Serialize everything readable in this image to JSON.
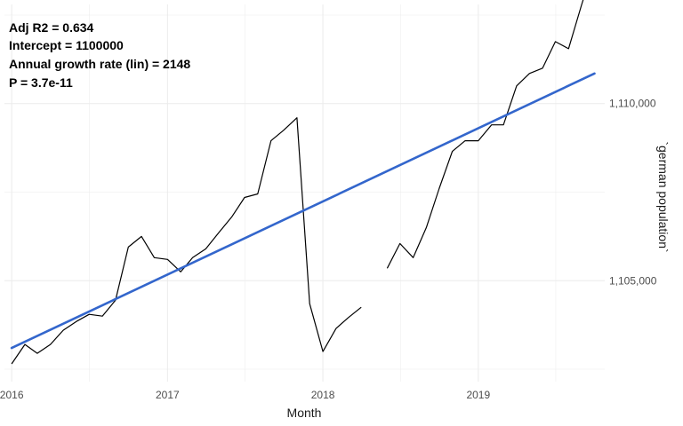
{
  "chart_data": {
    "type": "line",
    "xlabel": "Month",
    "ylabel": "`german population`",
    "xlim": [
      "2015-12-15",
      "2019-10-25"
    ],
    "ylim": [
      1102150,
      1112800
    ],
    "x_ticks": [
      {
        "date": "2016-01-01",
        "label": "2016"
      },
      {
        "date": "2017-01-01",
        "label": "2017"
      },
      {
        "date": "2018-01-01",
        "label": "2018"
      },
      {
        "date": "2019-01-01",
        "label": "2019"
      }
    ],
    "y_ticks": [
      {
        "value": 1105000,
        "label": "1,105,000"
      },
      {
        "value": 1110000,
        "label": "1,110,000"
      }
    ],
    "grid": true,
    "annotations": [
      "Adj R2 =  0.634",
      "Intercept = 1100000",
      "Annual growth rate (lin) = 2148",
      "P = 3.7e-11"
    ],
    "series": [
      {
        "kind": "observed",
        "color": "#000000",
        "segments": [
          [
            {
              "x": "2016-01-01",
              "y": 1102650
            },
            {
              "x": "2016-02-01",
              "y": 1103200
            },
            {
              "x": "2016-03-01",
              "y": 1102950
            },
            {
              "x": "2016-04-01",
              "y": 1103200
            },
            {
              "x": "2016-05-01",
              "y": 1103600
            },
            {
              "x": "2016-06-01",
              "y": 1103850
            },
            {
              "x": "2016-07-01",
              "y": 1104050
            },
            {
              "x": "2016-08-01",
              "y": 1104000
            },
            {
              "x": "2016-09-01",
              "y": 1104450
            },
            {
              "x": "2016-10-01",
              "y": 1105950
            },
            {
              "x": "2016-11-01",
              "y": 1106250
            },
            {
              "x": "2016-12-01",
              "y": 1105650
            },
            {
              "x": "2017-01-01",
              "y": 1105600
            },
            {
              "x": "2017-02-01",
              "y": 1105250
            },
            {
              "x": "2017-03-01",
              "y": 1105650
            },
            {
              "x": "2017-04-01",
              "y": 1105900
            },
            {
              "x": "2017-05-01",
              "y": 1106350
            },
            {
              "x": "2017-06-01",
              "y": 1106800
            },
            {
              "x": "2017-07-01",
              "y": 1107350
            },
            {
              "x": "2017-08-01",
              "y": 1107450
            },
            {
              "x": "2017-09-01",
              "y": 1108950
            },
            {
              "x": "2017-10-01",
              "y": 1109250
            },
            {
              "x": "2017-11-01",
              "y": 1109600
            },
            {
              "x": "2017-12-01",
              "y": 1104350
            },
            {
              "x": "2018-01-01",
              "y": 1103000
            },
            {
              "x": "2018-02-01",
              "y": 1103650
            },
            {
              "x": "2018-03-01",
              "y": 1103950
            },
            {
              "x": "2018-04-01",
              "y": 1104250
            }
          ],
          [
            {
              "x": "2018-06-01",
              "y": 1105350
            },
            {
              "x": "2018-07-01",
              "y": 1106050
            },
            {
              "x": "2018-08-01",
              "y": 1105650
            },
            {
              "x": "2018-09-01",
              "y": 1106500
            },
            {
              "x": "2018-10-01",
              "y": 1107600
            },
            {
              "x": "2018-11-01",
              "y": 1108650
            },
            {
              "x": "2018-12-01",
              "y": 1108950
            },
            {
              "x": "2019-01-01",
              "y": 1108950
            },
            {
              "x": "2019-02-01",
              "y": 1109400
            },
            {
              "x": "2019-03-01",
              "y": 1109400
            },
            {
              "x": "2019-04-01",
              "y": 1110500
            },
            {
              "x": "2019-05-01",
              "y": 1110850
            },
            {
              "x": "2019-06-01",
              "y": 1111000
            },
            {
              "x": "2019-07-01",
              "y": 1111750
            },
            {
              "x": "2019-08-01",
              "y": 1111550
            },
            {
              "x": "2019-09-01",
              "y": 1112800
            },
            {
              "x": "2019-10-01",
              "y": 1113950
            }
          ]
        ]
      },
      {
        "kind": "linear-fit",
        "color": "#3366cc",
        "points": [
          {
            "x": "2016-01-01",
            "y": 1103100
          },
          {
            "x": "2019-10-01",
            "y": 1110850
          }
        ]
      }
    ]
  }
}
